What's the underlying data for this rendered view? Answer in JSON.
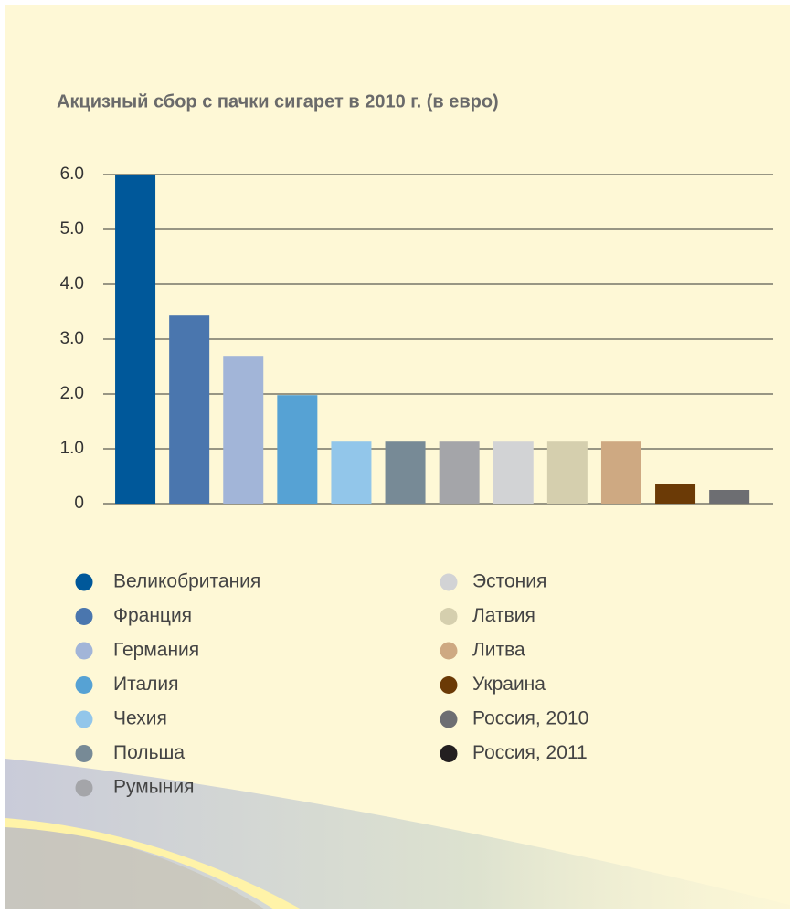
{
  "chart_data": {
    "type": "bar",
    "title": "Акцизный сбор с пачки сигарет в 2010 г. (в евро)",
    "categories": [
      "Великобритания",
      "Франция",
      "Германия",
      "Италия",
      "Чехия",
      "Польша",
      "Румыния",
      "Эстония",
      "Латвия",
      "Литва",
      "Украина",
      "Россия, 2010",
      "Россия, 2011"
    ],
    "values": [
      6.0,
      3.43,
      2.68,
      1.98,
      1.13,
      1.13,
      1.13,
      1.13,
      1.13,
      1.13,
      0.35,
      0.25,
      null
    ],
    "colors": [
      "#00589a",
      "#4a76ae",
      "#a2b5d8",
      "#56a2d4",
      "#92c6ea",
      "#778a96",
      "#a4a5a9",
      "#d2d3d5",
      "#d5cfae",
      "#cea982",
      "#6b3a06",
      "#6d6e72",
      "#231f20"
    ],
    "ylim": [
      0,
      6
    ],
    "yticks": [
      0,
      {
        "value": 1,
        "label": "1.0"
      },
      {
        "value": 2,
        "label": "2.0"
      },
      {
        "value": 3,
        "label": "3.0"
      },
      {
        "value": 4,
        "label": "4.0"
      },
      {
        "value": 5,
        "label": "5.0"
      },
      {
        "value": 6,
        "label": "6.0"
      }
    ],
    "grid": true
  }
}
